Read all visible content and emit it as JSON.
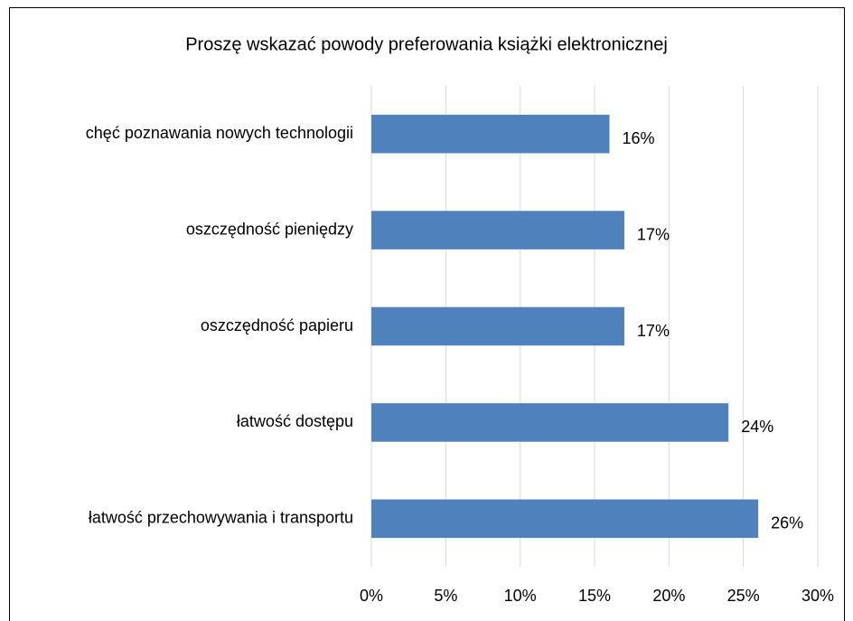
{
  "chart_data": {
    "type": "bar",
    "orientation": "horizontal",
    "title": "Proszę wskazać powody preferowania książki elektronicznej",
    "categories": [
      "chęć poznawania nowych technologii",
      "oszczędność pieniędzy",
      "oszczędność papieru",
      "łatwość dostępu",
      "łatwość przechowywania i transportu"
    ],
    "values": [
      16,
      17,
      17,
      24,
      26
    ],
    "value_labels": [
      "16%",
      "17%",
      "17%",
      "24%",
      "26%"
    ],
    "color": "#4f81bd",
    "xlim": [
      0,
      30
    ],
    "xticks": [
      {
        "value": 0,
        "label": "0%"
      },
      {
        "value": 5,
        "label": "5%"
      },
      {
        "value": 10,
        "label": "10%"
      },
      {
        "value": 15,
        "label": "15%"
      },
      {
        "value": 20,
        "label": "20%"
      },
      {
        "value": 25,
        "label": "25%"
      },
      {
        "value": 30,
        "label": "30%"
      }
    ],
    "grid": true
  }
}
